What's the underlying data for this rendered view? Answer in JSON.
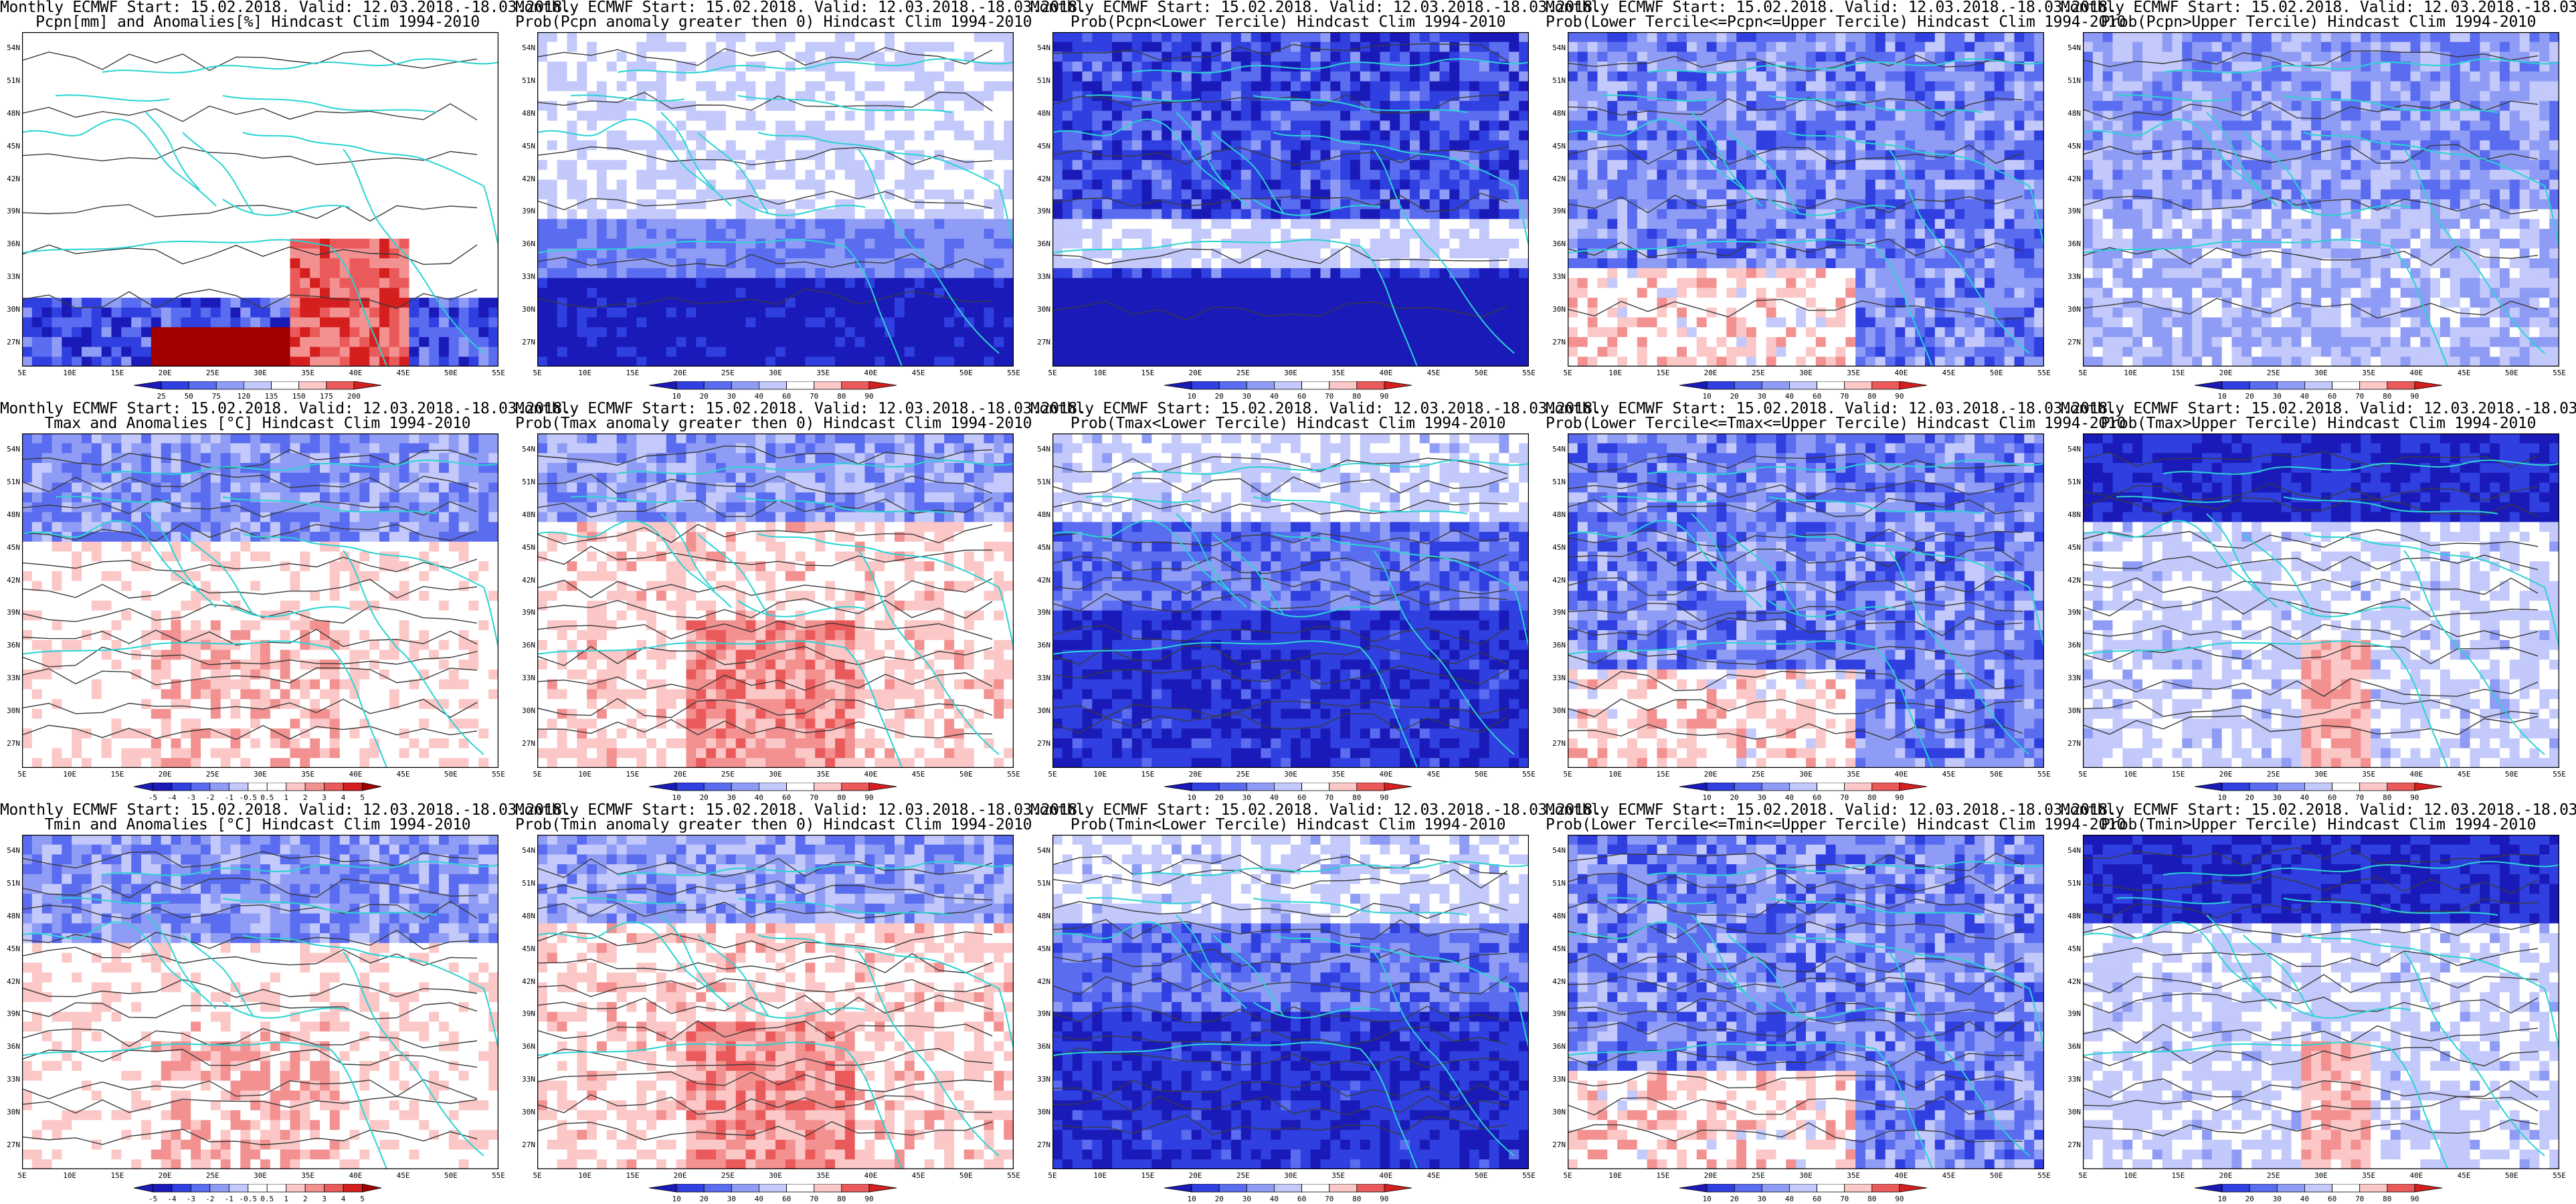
{
  "title_line1": "Monthly ECMWF Start: 15.02.2018. Valid: 12.03.2018.-18.03.2018.",
  "lat_ticks": [
    "54N",
    "51N",
    "48N",
    "45N",
    "42N",
    "39N",
    "36N",
    "33N",
    "30N",
    "27N"
  ],
  "lon_ticks": [
    "5E",
    "10E",
    "15E",
    "20E",
    "25E",
    "30E",
    "35E",
    "40E",
    "45E",
    "50E",
    "55E"
  ],
  "colors": {
    "blue_ramp": [
      "#1a1ab8",
      "#2f3fe0",
      "#5a6cf0",
      "#8f9cf5",
      "#c3c9fa",
      "#ffffff"
    ],
    "red_ramp": [
      "#ffffff",
      "#fbc7c7",
      "#f39090",
      "#ea5a5a",
      "#d51e1e",
      "#a00000"
    ],
    "coast": "#2ad3d3",
    "contour": "#3a3a3a"
  },
  "colorbars": {
    "pcpn_anom": [
      "25",
      "50",
      "75",
      "120",
      "135",
      "150",
      "175",
      "200"
    ],
    "temp_anom": [
      "-5",
      "-4",
      "-3",
      "-2",
      "-1",
      "-0.5",
      "0.5",
      "1",
      "2",
      "3",
      "4",
      "5"
    ],
    "prob": [
      "10",
      "20",
      "30",
      "40",
      "60",
      "70",
      "80",
      "90"
    ]
  },
  "rows": [
    {
      "variable": "pcpn",
      "panels": [
        {
          "line2": "Pcpn[mm] and Anomalies[%] Hindcast Clim 1994-2010",
          "kind": "anom_pcpn",
          "colorbar": "pcpn_anom"
        },
        {
          "line2": "Prob(Pcpn anomaly greater then 0) Hindcast Clim 1994-2010",
          "kind": "prob_pos",
          "colorbar": "prob"
        },
        {
          "line2": "Prob(Pcpn<Lower Tercile) Hindcast Clim 1994-2010",
          "kind": "prob_lower_strong",
          "colorbar": "prob"
        },
        {
          "line2": "Prob(Lower Tercile<=Pcpn<=Upper Tercile) Hindcast Clim 1994-2010",
          "kind": "prob_mid",
          "colorbar": "prob"
        },
        {
          "line2": "Prob(Pcpn>Upper Tercile) Hindcast Clim 1994-2010",
          "kind": "prob_upper",
          "colorbar": "prob"
        }
      ]
    },
    {
      "variable": "tmax",
      "panels": [
        {
          "line2": "Tmax and Anomalies [°C] Hindcast Clim 1994-2010",
          "kind": "anom_temp",
          "colorbar": "temp_anom"
        },
        {
          "line2": "Prob(Tmax anomaly greater then 0) Hindcast Clim 1994-2010",
          "kind": "prob_warm",
          "colorbar": "prob"
        },
        {
          "line2": "Prob(Tmax<Lower Tercile) Hindcast Clim 1994-2010",
          "kind": "prob_lower",
          "colorbar": "prob"
        },
        {
          "line2": "Prob(Lower Tercile<=Tmax<=Upper Tercile) Hindcast Clim 1994-2010",
          "kind": "prob_mid",
          "colorbar": "prob"
        },
        {
          "line2": "Prob(Tmax>Upper Tercile) Hindcast Clim 1994-2010",
          "kind": "prob_upper_t",
          "colorbar": "prob"
        }
      ]
    },
    {
      "variable": "tmin",
      "panels": [
        {
          "line2": "Tmin and Anomalies [°C] Hindcast Clim 1994-2010",
          "kind": "anom_temp",
          "colorbar": "temp_anom"
        },
        {
          "line2": "Prob(Tmin anomaly greater then 0) Hindcast Clim 1994-2010",
          "kind": "prob_warm",
          "colorbar": "prob"
        },
        {
          "line2": "Prob(Tmin<Lower Tercile) Hindcast Clim 1994-2010",
          "kind": "prob_lower",
          "colorbar": "prob"
        },
        {
          "line2": "Prob(Lower Tercile<=Tmin<=Upper Tercile) Hindcast Clim 1994-2010",
          "kind": "prob_mid",
          "colorbar": "prob"
        },
        {
          "line2": "Prob(Tmin>Upper Tercile) Hindcast Clim 1994-2010",
          "kind": "prob_upper_t",
          "colorbar": "prob"
        }
      ]
    }
  ]
}
